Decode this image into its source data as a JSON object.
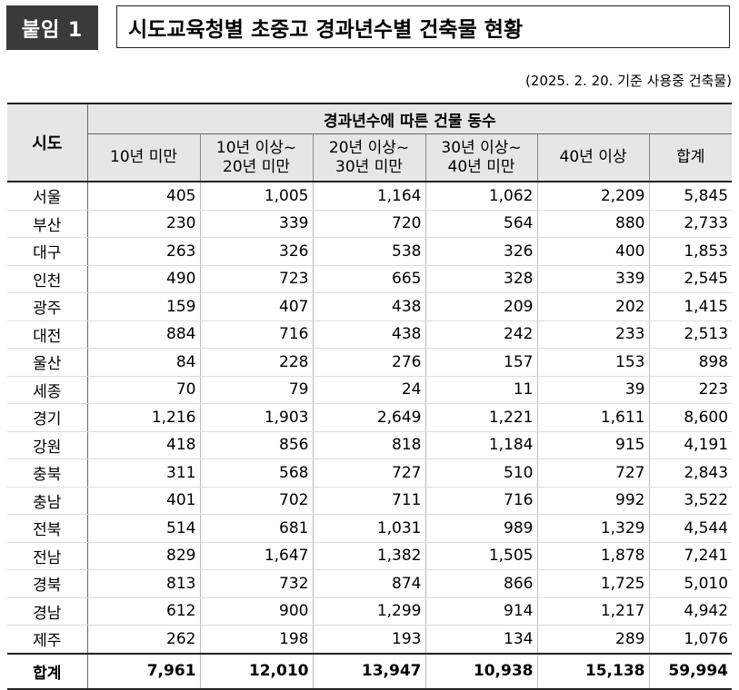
{
  "badge": "붙임 1",
  "title": "시도교육청별 초중고 경과년수별 건축물 현황",
  "note": "(2025. 2. 20. 기준 사용중 건축물)",
  "table": {
    "sido_header": "시도",
    "group_header": "경과년수에 따른 건물 동수",
    "columns": [
      "10년 미만",
      "10년 이상~\n20년 미만",
      "20년 이상~\n30년 미만",
      "30년 이상~\n40년 미만",
      "40년 이상",
      "합계"
    ],
    "rows": [
      {
        "name": "서울",
        "values": [
          "405",
          "1,005",
          "1,164",
          "1,062",
          "2,209",
          "5,845"
        ]
      },
      {
        "name": "부산",
        "values": [
          "230",
          "339",
          "720",
          "564",
          "880",
          "2,733"
        ]
      },
      {
        "name": "대구",
        "values": [
          "263",
          "326",
          "538",
          "326",
          "400",
          "1,853"
        ]
      },
      {
        "name": "인천",
        "values": [
          "490",
          "723",
          "665",
          "328",
          "339",
          "2,545"
        ]
      },
      {
        "name": "광주",
        "values": [
          "159",
          "407",
          "438",
          "209",
          "202",
          "1,415"
        ]
      },
      {
        "name": "대전",
        "values": [
          "884",
          "716",
          "438",
          "242",
          "233",
          "2,513"
        ]
      },
      {
        "name": "울산",
        "values": [
          "84",
          "228",
          "276",
          "157",
          "153",
          "898"
        ]
      },
      {
        "name": "세종",
        "values": [
          "70",
          "79",
          "24",
          "11",
          "39",
          "223"
        ]
      },
      {
        "name": "경기",
        "values": [
          "1,216",
          "1,903",
          "2,649",
          "1,221",
          "1,611",
          "8,600"
        ]
      },
      {
        "name": "강원",
        "values": [
          "418",
          "856",
          "818",
          "1,184",
          "915",
          "4,191"
        ]
      },
      {
        "name": "충북",
        "values": [
          "311",
          "568",
          "727",
          "510",
          "727",
          "2,843"
        ]
      },
      {
        "name": "충남",
        "values": [
          "401",
          "702",
          "711",
          "716",
          "992",
          "3,522"
        ]
      },
      {
        "name": "전북",
        "values": [
          "514",
          "681",
          "1,031",
          "989",
          "1,329",
          "4,544"
        ]
      },
      {
        "name": "전남",
        "values": [
          "829",
          "1,647",
          "1,382",
          "1,505",
          "1,878",
          "7,241"
        ]
      },
      {
        "name": "경북",
        "values": [
          "813",
          "732",
          "874",
          "866",
          "1,725",
          "5,010"
        ]
      },
      {
        "name": "경남",
        "values": [
          "612",
          "900",
          "1,299",
          "914",
          "1,217",
          "4,942"
        ]
      },
      {
        "name": "제주",
        "values": [
          "262",
          "198",
          "193",
          "134",
          "289",
          "1,076"
        ]
      }
    ],
    "total": {
      "name": "합계",
      "values": [
        "7,961",
        "12,010",
        "13,947",
        "10,938",
        "15,138",
        "59,994"
      ]
    }
  }
}
